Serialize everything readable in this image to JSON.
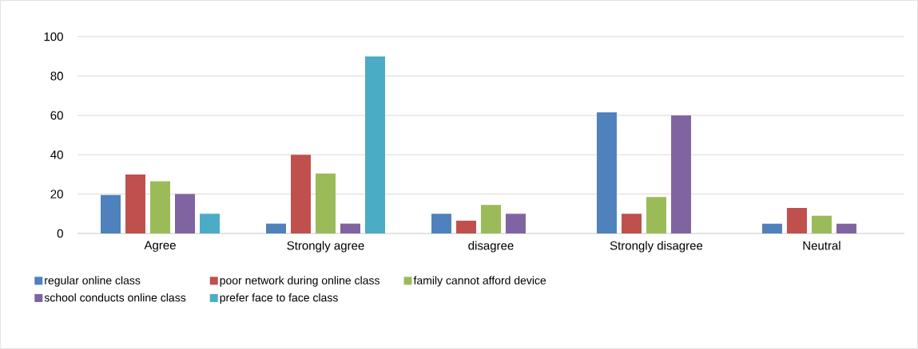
{
  "chart_data": {
    "type": "bar",
    "categories": [
      "Agree",
      "Strongly agree",
      "disagree",
      "Strongly disagree",
      "Neutral"
    ],
    "series": [
      {
        "name": "regular online class",
        "color": "#4f81bd",
        "values": [
          19.5,
          5,
          10,
          61.5,
          5
        ]
      },
      {
        "name": "poor network during online class",
        "color": "#c0504d",
        "values": [
          30,
          40,
          6.5,
          10,
          13
        ]
      },
      {
        "name": "family cannot afford device",
        "color": "#9bbb59",
        "values": [
          26.5,
          30.5,
          14.5,
          18.5,
          9
        ]
      },
      {
        "name": "school conducts online class",
        "color": "#8064a2",
        "values": [
          20,
          5,
          10,
          60,
          5
        ]
      },
      {
        "name": "prefer face to face class",
        "color": "#4bacc6",
        "values": [
          10,
          90,
          null,
          null,
          null
        ]
      }
    ],
    "ylim": [
      0,
      100
    ],
    "yticks": [
      0,
      20,
      40,
      60,
      80,
      100
    ],
    "grid": "y",
    "legend": "bottom"
  }
}
